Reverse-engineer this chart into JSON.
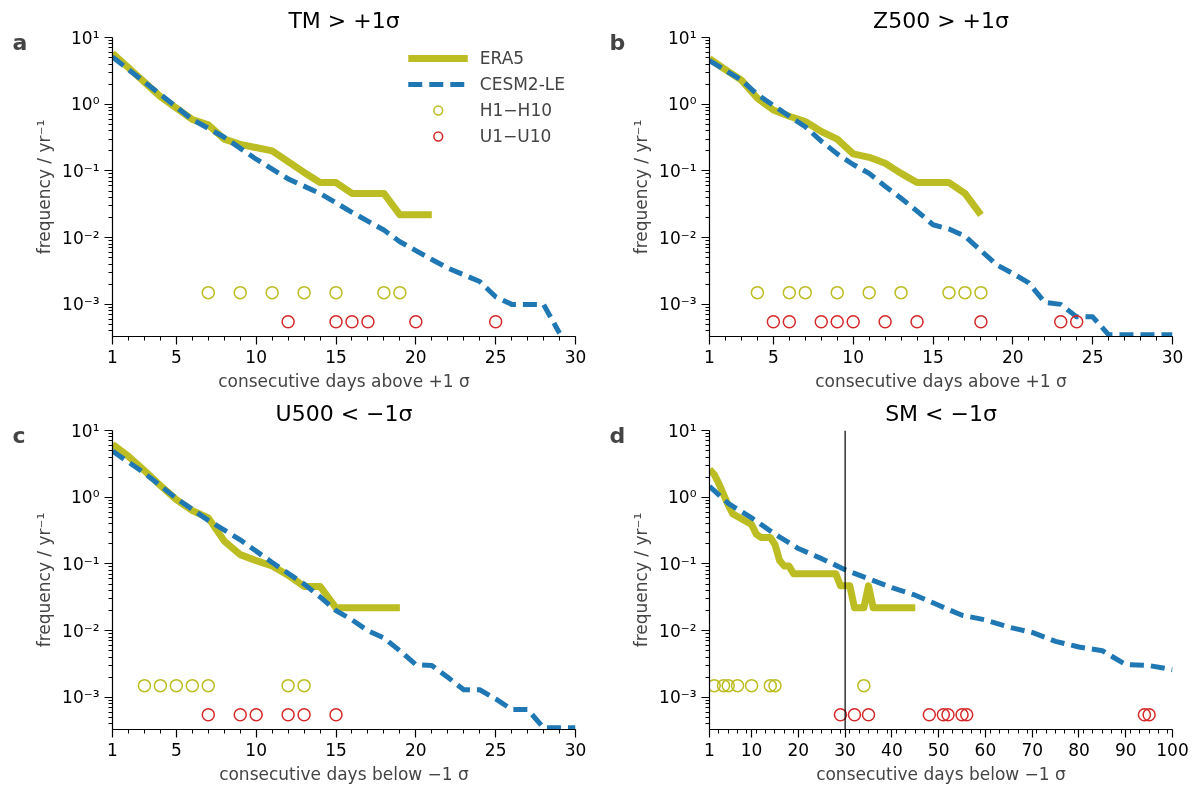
{
  "chart_data": [
    {
      "type": "line",
      "title": "TM > +1σ",
      "annotations": [
        "a"
      ],
      "xlabel": "consecutive days above +1 σ",
      "ylabel": "frequency / yr⁻¹",
      "log": "y",
      "grid": false,
      "legend": "top right",
      "xlim": [
        1,
        30
      ],
      "xticks": [
        1,
        5,
        10,
        15,
        20,
        25,
        30
      ],
      "ylim": [
        0.00033,
        10
      ],
      "yticks": [
        {
          "value": 0.001,
          "label": "10⁻³"
        },
        {
          "value": 0.01,
          "label": "10⁻²"
        },
        {
          "value": 0.1,
          "label": "10⁻¹"
        },
        {
          "value": 1,
          "label": "10⁰"
        },
        {
          "value": 10,
          "label": "10¹"
        }
      ],
      "series": [
        {
          "name": "ERA5",
          "type": "line",
          "line_style": "solid",
          "color": "#bcbd22",
          "x": [
            1,
            4,
            6,
            7,
            8,
            9,
            11,
            13,
            14,
            15,
            16,
            18,
            19,
            21
          ],
          "values": [
            5.8,
            1.3,
            0.59,
            0.49,
            0.3,
            0.25,
            0.2,
            0.095,
            0.067,
            0.067,
            0.046,
            0.046,
            0.022,
            0.022
          ]
        },
        {
          "name": "CESM2-LE",
          "type": "line",
          "line_style": "dashed",
          "color": "#1f77b4",
          "x": [
            1,
            4,
            6,
            8,
            10,
            12,
            14,
            16,
            18,
            19,
            20,
            21,
            22,
            24,
            25,
            26,
            28,
            29
          ],
          "values": [
            5.1,
            1.4,
            0.59,
            0.32,
            0.15,
            0.076,
            0.046,
            0.024,
            0.013,
            0.0087,
            0.0064,
            0.0047,
            0.0035,
            0.0022,
            0.0013,
            0.001,
            0.001,
            0.00037
          ]
        },
        {
          "name": "H1−H10",
          "type": "scatter",
          "marker": "circle",
          "color": "#bcbd22",
          "x": [
            7,
            9,
            11,
            13,
            15,
            18,
            19
          ],
          "values": [
            0.0015,
            0.0015,
            0.0015,
            0.0015,
            0.0015,
            0.0015,
            0.0015
          ]
        },
        {
          "name": "U1−U10",
          "type": "scatter",
          "marker": "circle",
          "color": "#d62728",
          "x": [
            12,
            15,
            16,
            17,
            20,
            25
          ],
          "values": [
            0.00055,
            0.00055,
            0.00055,
            0.00055,
            0.00055,
            0.00055
          ]
        }
      ]
    },
    {
      "type": "line",
      "title": "Z500 > +1σ",
      "annotations": [
        "b"
      ],
      "xlabel": "consecutive days above +1 σ",
      "ylabel": "frequency / yr⁻¹",
      "log": "y",
      "grid": false,
      "xlim": [
        1,
        30
      ],
      "xticks": [
        1,
        5,
        10,
        15,
        20,
        25,
        30
      ],
      "ylim": [
        0.00033,
        10
      ],
      "yticks": [
        {
          "value": 0.001,
          "label": "10⁻³"
        },
        {
          "value": 0.01,
          "label": "10⁻²"
        },
        {
          "value": 0.1,
          "label": "10⁻¹"
        },
        {
          "value": 1,
          "label": "10⁰"
        },
        {
          "value": 10,
          "label": "10¹"
        }
      ],
      "series": [
        {
          "type": "line",
          "line_style": "solid",
          "color": "#bcbd22",
          "x": [
            1,
            2,
            3,
            4,
            5,
            6,
            7,
            8,
            9,
            10,
            11,
            12,
            13,
            14,
            16,
            17,
            18
          ],
          "values": [
            4.8,
            3.3,
            2.3,
            1.23,
            0.82,
            0.66,
            0.55,
            0.39,
            0.3,
            0.18,
            0.16,
            0.13,
            0.092,
            0.067,
            0.067,
            0.046,
            0.022
          ]
        },
        {
          "type": "line",
          "line_style": "dashed",
          "color": "#1f77b4",
          "x": [
            1,
            3,
            4,
            5,
            6,
            7,
            8,
            9,
            10,
            11,
            12,
            13,
            14,
            15,
            16,
            17,
            18,
            19,
            20,
            21,
            22,
            23,
            24,
            25,
            26,
            30
          ],
          "values": [
            4.5,
            2.3,
            1.4,
            0.96,
            0.66,
            0.46,
            0.28,
            0.18,
            0.125,
            0.092,
            0.059,
            0.039,
            0.025,
            0.0156,
            0.0135,
            0.0105,
            0.0064,
            0.0039,
            0.0029,
            0.0021,
            0.00107,
            0.001,
            0.00065,
            0.00065,
            0.00035,
            0.00035
          ]
        },
        {
          "type": "scatter",
          "marker": "circle",
          "color": "#bcbd22",
          "x": [
            4,
            6,
            7,
            9,
            11,
            13,
            16,
            17,
            18
          ],
          "values": [
            0.0015,
            0.0015,
            0.0015,
            0.0015,
            0.0015,
            0.0015,
            0.0015,
            0.0015,
            0.0015
          ]
        },
        {
          "type": "scatter",
          "marker": "circle",
          "color": "#d62728",
          "x": [
            5,
            6,
            8,
            9,
            10,
            12,
            14,
            18,
            23,
            24
          ],
          "values": [
            0.00055,
            0.00055,
            0.00055,
            0.00055,
            0.00055,
            0.00055,
            0.00055,
            0.00055,
            0.00055,
            0.00055
          ]
        }
      ]
    },
    {
      "type": "line",
      "title": "U500 < −1σ",
      "annotations": [
        "c"
      ],
      "xlabel": "consecutive days below −1 σ",
      "ylabel": "frequency / yr⁻¹",
      "log": "y",
      "grid": false,
      "xlim": [
        1,
        30
      ],
      "xticks": [
        1,
        5,
        10,
        15,
        20,
        25,
        30
      ],
      "ylim": [
        0.00033,
        10
      ],
      "yticks": [
        {
          "value": 0.001,
          "label": "10⁻³"
        },
        {
          "value": 0.01,
          "label": "10⁻²"
        },
        {
          "value": 0.1,
          "label": "10⁻¹"
        },
        {
          "value": 1,
          "label": "10⁰"
        },
        {
          "value": 10,
          "label": "10¹"
        }
      ],
      "series": [
        {
          "type": "line",
          "line_style": "solid",
          "color": "#bcbd22",
          "x": [
            1,
            2,
            3,
            4,
            5,
            6,
            7,
            8,
            9,
            10,
            11,
            12,
            13,
            14,
            15,
            19
          ],
          "values": [
            6.2,
            4.1,
            2.5,
            1.5,
            0.92,
            0.63,
            0.49,
            0.22,
            0.138,
            0.112,
            0.093,
            0.068,
            0.046,
            0.046,
            0.022,
            0.022
          ]
        },
        {
          "type": "line",
          "line_style": "dashed",
          "color": "#1f77b4",
          "x": [
            1,
            3,
            5,
            7,
            9,
            11,
            13,
            14,
            15,
            16,
            17,
            18,
            19,
            20,
            21,
            22,
            23,
            24,
            25,
            26,
            27,
            28,
            30
          ],
          "values": [
            4.9,
            2.3,
            0.96,
            0.45,
            0.23,
            0.105,
            0.05,
            0.032,
            0.02,
            0.0145,
            0.01,
            0.0078,
            0.005,
            0.0031,
            0.003,
            0.002,
            0.0013,
            0.0013,
            0.00095,
            0.00066,
            0.00066,
            0.00035,
            0.00035
          ]
        },
        {
          "type": "scatter",
          "marker": "circle",
          "color": "#bcbd22",
          "x": [
            3,
            4,
            5,
            6,
            7,
            12,
            13
          ],
          "values": [
            0.0015,
            0.0015,
            0.0015,
            0.0015,
            0.0015,
            0.0015,
            0.0015
          ]
        },
        {
          "type": "scatter",
          "marker": "circle",
          "color": "#d62728",
          "x": [
            7,
            9,
            10,
            12,
            13,
            15
          ],
          "values": [
            0.00055,
            0.00055,
            0.00055,
            0.00055,
            0.00055,
            0.00055
          ]
        }
      ]
    },
    {
      "type": "line",
      "title": "SM < −1σ",
      "annotations": [
        "d"
      ],
      "xlabel": "consecutive days below −1 σ",
      "ylabel": "frequency / yr⁻¹",
      "log": "y",
      "grid": false,
      "xlim": [
        1,
        100
      ],
      "xticks": [
        1,
        10,
        20,
        30,
        40,
        50,
        60,
        70,
        80,
        90,
        100
      ],
      "ylim": [
        0.00033,
        10
      ],
      "yticks": [
        {
          "value": 0.001,
          "label": "10⁻³"
        },
        {
          "value": 0.01,
          "label": "10⁻²"
        },
        {
          "value": 0.1,
          "label": "10⁻¹"
        },
        {
          "value": 1,
          "label": "10⁰"
        },
        {
          "value": 10,
          "label": "10¹"
        }
      ],
      "ref_lines": [
        {
          "axis": "x",
          "value": 30,
          "color": "#000000"
        }
      ],
      "series": [
        {
          "type": "line",
          "line_style": "solid",
          "color": "#bcbd22",
          "x": [
            1,
            2,
            3,
            4,
            5,
            6,
            8,
            10,
            11,
            12,
            14,
            15,
            16,
            17,
            18,
            19,
            28,
            29,
            31,
            32,
            34,
            35,
            36,
            45
          ],
          "values": [
            2.6,
            2.2,
            1.6,
            1.1,
            0.76,
            0.56,
            0.47,
            0.39,
            0.28,
            0.25,
            0.25,
            0.195,
            0.112,
            0.093,
            0.093,
            0.071,
            0.071,
            0.047,
            0.047,
            0.022,
            0.022,
            0.047,
            0.022,
            0.022
          ]
        },
        {
          "type": "line",
          "line_style": "dashed",
          "color": "#1f77b4",
          "x": [
            1,
            5,
            10,
            15,
            20,
            25,
            30,
            35,
            40,
            45,
            50,
            55,
            60,
            65,
            70,
            75,
            80,
            85,
            90,
            95,
            100
          ],
          "values": [
            1.45,
            0.81,
            0.49,
            0.28,
            0.17,
            0.12,
            0.082,
            0.06,
            0.044,
            0.034,
            0.024,
            0.017,
            0.0145,
            0.0113,
            0.0094,
            0.0069,
            0.0057,
            0.005,
            0.0031,
            0.003,
            0.0026
          ]
        },
        {
          "type": "scatter",
          "marker": "circle",
          "color": "#bcbd22",
          "x": [
            2,
            4,
            5,
            7,
            10,
            14,
            15,
            34
          ],
          "values": [
            0.0015,
            0.0015,
            0.0015,
            0.0015,
            0.0015,
            0.0015,
            0.0015,
            0.0015
          ]
        },
        {
          "type": "scatter",
          "marker": "circle",
          "color": "#d62728",
          "x": [
            29,
            32,
            35,
            48,
            51,
            52,
            55,
            56,
            94,
            95
          ],
          "values": [
            0.00055,
            0.00055,
            0.00055,
            0.00055,
            0.00055,
            0.00055,
            0.00055,
            0.00055,
            0.00055,
            0.00055
          ]
        }
      ]
    }
  ]
}
